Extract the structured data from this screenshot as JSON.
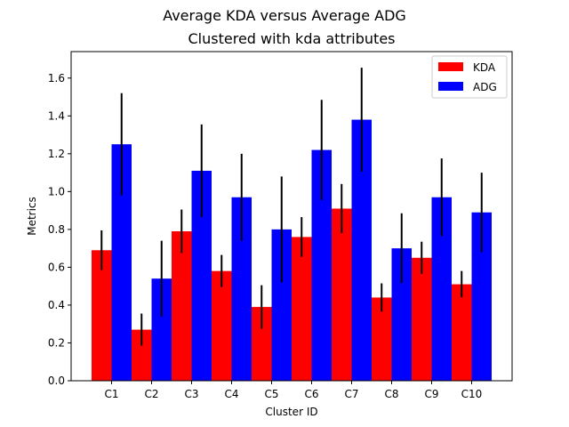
{
  "chart_data": {
    "type": "bar",
    "title": "Average KDA versus Average ADG",
    "subtitle": "Clustered with kda attributes",
    "xlabel": "Cluster ID",
    "ylabel": "Metrics",
    "ylim": [
      0,
      1.74
    ],
    "yticks": [
      0.0,
      0.2,
      0.4,
      0.6,
      0.8,
      1.0,
      1.2,
      1.4,
      1.6
    ],
    "ytick_labels": [
      "0.0",
      "0.2",
      "0.4",
      "0.6",
      "0.8",
      "1.0",
      "1.2",
      "1.4",
      "1.6"
    ],
    "categories": [
      "C1",
      "C2",
      "C3",
      "C4",
      "C5",
      "C6",
      "C7",
      "C8",
      "C9",
      "C10"
    ],
    "series": [
      {
        "name": "KDA",
        "color": "#ff0000",
        "values": [
          0.69,
          0.27,
          0.79,
          0.58,
          0.39,
          0.76,
          0.91,
          0.44,
          0.65,
          0.51
        ],
        "errors": [
          0.105,
          0.085,
          0.115,
          0.085,
          0.115,
          0.105,
          0.13,
          0.075,
          0.085,
          0.07
        ]
      },
      {
        "name": "ADG",
        "color": "#0000ff",
        "values": [
          1.25,
          0.54,
          1.11,
          0.97,
          0.8,
          1.22,
          1.38,
          0.7,
          0.97,
          0.89
        ],
        "errors": [
          0.27,
          0.2,
          0.245,
          0.23,
          0.28,
          0.265,
          0.275,
          0.185,
          0.205,
          0.21
        ]
      }
    ],
    "legend": [
      "KDA",
      "ADG"
    ],
    "legend_position": "top-right",
    "grid": false
  }
}
